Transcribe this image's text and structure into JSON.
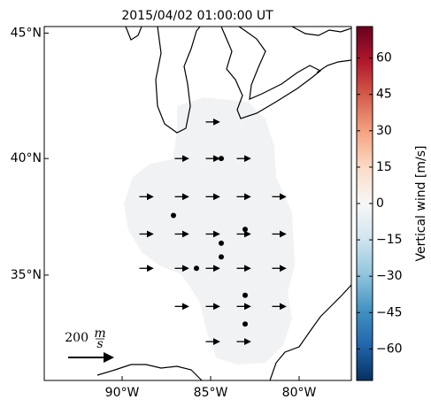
{
  "map": {
    "title": "2015/04/02 01:00:00 UT",
    "xlim": [
      -94.4,
      -77.05
    ],
    "ylim": [
      30.2,
      45.25
    ],
    "xticks": [
      {
        "value": -90,
        "label": "90°W"
      },
      {
        "value": -85,
        "label": "85°W"
      },
      {
        "value": -80,
        "label": "80°W"
      }
    ],
    "yticks": [
      {
        "value": 35,
        "label": "35°N"
      },
      {
        "value": 40,
        "label": "40°N"
      },
      {
        "value": 45,
        "label": "45°N"
      }
    ],
    "colorbar": {
      "label": "Vertical wind [m/s]",
      "lim": [
        -73,
        73
      ],
      "ticks": [
        {
          "value": -60,
          "label": "−60"
        },
        {
          "value": -45,
          "label": "−45"
        },
        {
          "value": -30,
          "label": "−30"
        },
        {
          "value": -15,
          "label": "−15"
        },
        0,
        15,
        30,
        45,
        60
      ]
    },
    "arrows": [
      {
        "lon": -84.9,
        "lat": 41.5,
        "u": 60
      },
      {
        "lon": -86.65,
        "lat": 40.0,
        "u": 60
      },
      {
        "lon": -84.9,
        "lat": 40.0,
        "u": 60
      },
      {
        "lon": -83.15,
        "lat": 40.0,
        "u": 60
      },
      {
        "lon": -88.65,
        "lat": 38.4,
        "u": 60
      },
      {
        "lon": -86.65,
        "lat": 38.4,
        "u": 60
      },
      {
        "lon": -84.9,
        "lat": 38.4,
        "u": 60
      },
      {
        "lon": -83.15,
        "lat": 38.4,
        "u": 60
      },
      {
        "lon": -81.15,
        "lat": 38.4,
        "u": 60
      },
      {
        "lon": -88.65,
        "lat": 36.8,
        "u": 60
      },
      {
        "lon": -86.65,
        "lat": 36.8,
        "u": 60
      },
      {
        "lon": -84.9,
        "lat": 36.8,
        "u": 60
      },
      {
        "lon": -83.15,
        "lat": 36.8,
        "u": 60
      },
      {
        "lon": -81.15,
        "lat": 36.8,
        "u": 60
      },
      {
        "lon": -88.65,
        "lat": 35.3,
        "u": 60
      },
      {
        "lon": -86.65,
        "lat": 35.3,
        "u": 60
      },
      {
        "lon": -84.9,
        "lat": 35.3,
        "u": 60
      },
      {
        "lon": -83.15,
        "lat": 35.3,
        "u": 60
      },
      {
        "lon": -81.15,
        "lat": 35.3,
        "u": 60
      },
      {
        "lon": -86.65,
        "lat": 33.6,
        "u": 60
      },
      {
        "lon": -84.9,
        "lat": 33.6,
        "u": 60
      },
      {
        "lon": -83.15,
        "lat": 33.6,
        "u": 60
      },
      {
        "lon": -81.15,
        "lat": 33.6,
        "u": 60
      },
      {
        "lon": -84.9,
        "lat": 32.0,
        "u": 60
      },
      {
        "lon": -83.15,
        "lat": 32.0,
        "u": 60
      }
    ],
    "points": [
      [
        -84.4,
        40.0
      ],
      [
        -87.1,
        37.6
      ],
      [
        -83.05,
        37.0
      ],
      [
        -84.4,
        36.4
      ],
      [
        -84.4,
        35.8
      ],
      [
        -85.8,
        35.3
      ],
      [
        -83.05,
        34.1
      ],
      [
        -83.05,
        32.8
      ]
    ],
    "key": {
      "value": 200,
      "label": "200",
      "unit_top": "m",
      "unit_bottom": "s"
    }
  }
}
